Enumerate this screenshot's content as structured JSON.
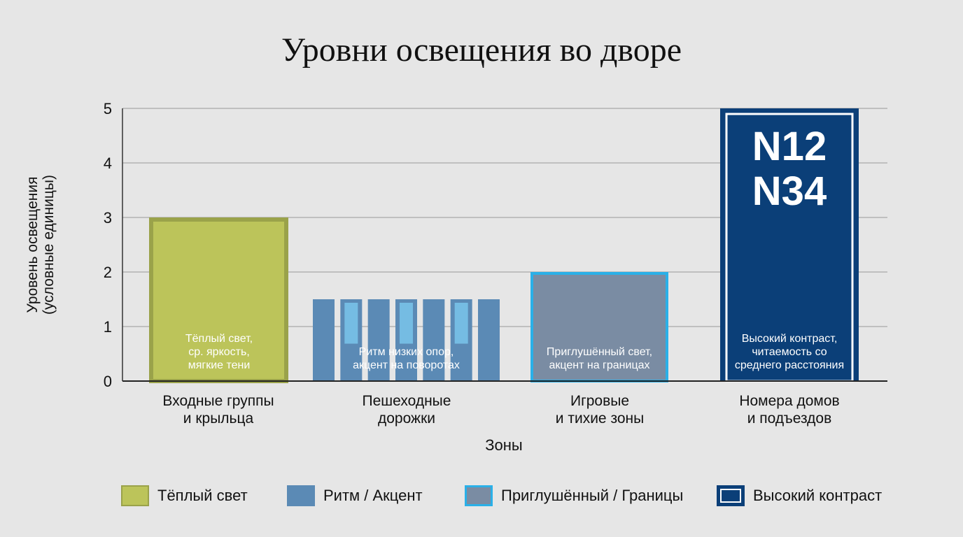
{
  "chart_data": {
    "type": "bar",
    "title": "Уровни освещения во дворе",
    "xlabel": "Зоны",
    "ylabel": [
      "Уровень освещения",
      "(условные единицы)"
    ],
    "ylim": [
      0,
      5
    ],
    "yticks": [
      "0",
      "1",
      "2",
      "3",
      "4",
      "5"
    ],
    "grid": true,
    "legend_position": "bottom",
    "categories": [
      [
        "Входные группы",
        "и крыльца"
      ],
      [
        "Пешеходные",
        "дорожки"
      ],
      [
        "Игровые",
        "и тихие зоны"
      ],
      [
        "Номера домов",
        "и подъездов"
      ]
    ],
    "values": [
      3,
      1.5,
      2,
      5
    ],
    "annotations": [
      [
        "Тёплый свет,",
        "ср. яркость,",
        "мягкие тени"
      ],
      [
        "Ритм низких опор,",
        "акцент на поворотах"
      ],
      [
        "Приглушённый свет,",
        "акцент на границах"
      ],
      [
        "Высокий контраст,",
        "читаемость со",
        "среднего расстояния"
      ]
    ],
    "house_numbers": [
      "N12",
      "N34"
    ],
    "legend": [
      "Тёплый свет",
      "Ритм / Акцент",
      "Приглушённый / Границы",
      "Высокий контраст"
    ],
    "colors": [
      "#bcc45a",
      "#5b8ab5",
      "#7a8ca3",
      "#0b3f78"
    ],
    "border_colors": [
      "#9aa24a",
      "#5b8ab5",
      "#2ab0e8",
      "#ffffff"
    ]
  }
}
